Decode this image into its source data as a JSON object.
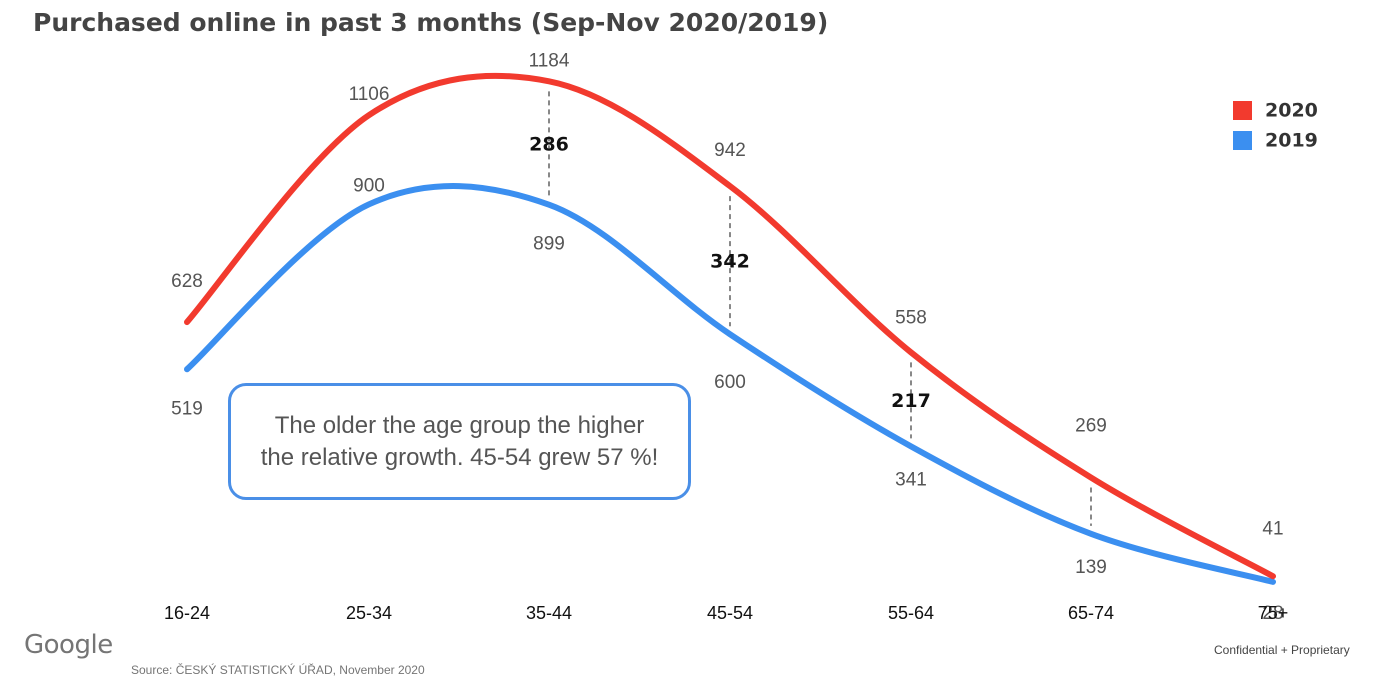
{
  "title": "Purchased online in past 3 months (Sep-Nov 2020/2019)",
  "callout": "The older the age group the higher the relative growth. 45-54 grew 57 %!",
  "logo_text": "Google",
  "source": "Source: ČESKÝ STATISTICKÝ ÚŘAD, November 2020",
  "confidential": "Confidential + Proprietary",
  "chart_data": {
    "type": "line",
    "categories": [
      "16-24",
      "25-34",
      "35-44",
      "45-54",
      "55-64",
      "65-74",
      "75+"
    ],
    "series": [
      {
        "name": "2020",
        "color": "#f23a2e",
        "values": [
          628,
          1106,
          1184,
          942,
          558,
          269,
          41
        ]
      },
      {
        "name": "2019",
        "color": "#3b8ff0",
        "values": [
          519,
          900,
          899,
          600,
          341,
          139,
          28
        ]
      }
    ],
    "gap_labels": [
      {
        "category": "35-44",
        "value": "286"
      },
      {
        "category": "45-54",
        "value": "342"
      },
      {
        "category": "55-64",
        "value": "217"
      }
    ],
    "gap_markers": [
      "35-44",
      "45-54",
      "55-64",
      "65-74"
    ],
    "legend_position": "top-right",
    "grid": false
  }
}
